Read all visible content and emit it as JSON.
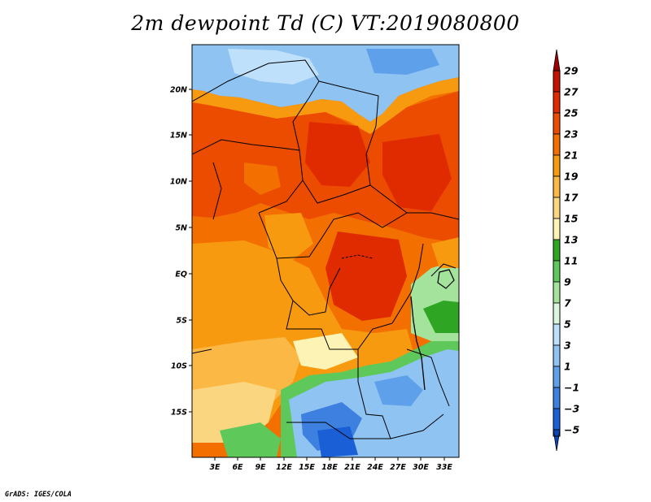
{
  "title": "2m dewpoint Td (C) VT:2019080800",
  "credit": "GrADS: IGES/COLA",
  "map": {
    "variable": "2m dewpoint",
    "units": "C",
    "valid_time": "2019080800",
    "lat_labels": [
      "20N",
      "15N",
      "10N",
      "5N",
      "EQ",
      "5S",
      "10S",
      "15S"
    ],
    "lon_labels": [
      "3E",
      "6E",
      "9E",
      "12E",
      "15E",
      "18E",
      "21E",
      "24E",
      "27E",
      "30E",
      "33E"
    ]
  },
  "colorbar": {
    "labels": [
      "29",
      "27",
      "25",
      "23",
      "21",
      "19",
      "17",
      "15",
      "13",
      "11",
      "9",
      "7",
      "5",
      "3",
      "1",
      "−1",
      "−3",
      "−5"
    ],
    "colors": [
      "#9c0000",
      "#c41400",
      "#e02a00",
      "#ec4c00",
      "#f26f00",
      "#f89a10",
      "#fbb845",
      "#fbd680",
      "#fdf3b5",
      "#2ea624",
      "#5ec95a",
      "#a4e39c",
      "#dcf5de",
      "#bfe0fa",
      "#8ec3f2",
      "#5ea1ea",
      "#3d80e0",
      "#1a5fd6",
      "#0a45b8"
    ]
  }
}
